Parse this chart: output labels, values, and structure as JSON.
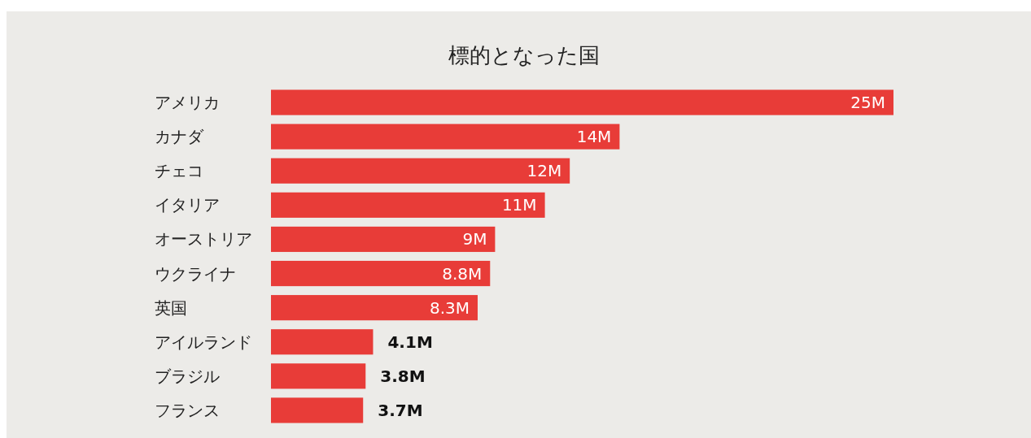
{
  "chart_data": {
    "type": "bar",
    "orientation": "horizontal",
    "title": "標的となった国",
    "categories": [
      "アメリカ",
      "カナダ",
      "チェコ",
      "イタリア",
      "オーストリア",
      "ウクライナ",
      "英国",
      "アイルランド",
      "ブラジル",
      "フランス"
    ],
    "values": [
      25,
      14,
      12,
      11,
      9,
      8.8,
      8.3,
      4.1,
      3.8,
      3.7
    ],
    "value_labels": [
      "25M",
      "14M",
      "12M",
      "11M",
      "9M",
      "8.8M",
      "8.3M",
      "4.1M",
      "3.8M",
      "3.7M"
    ],
    "color": "#e83c38"
  }
}
